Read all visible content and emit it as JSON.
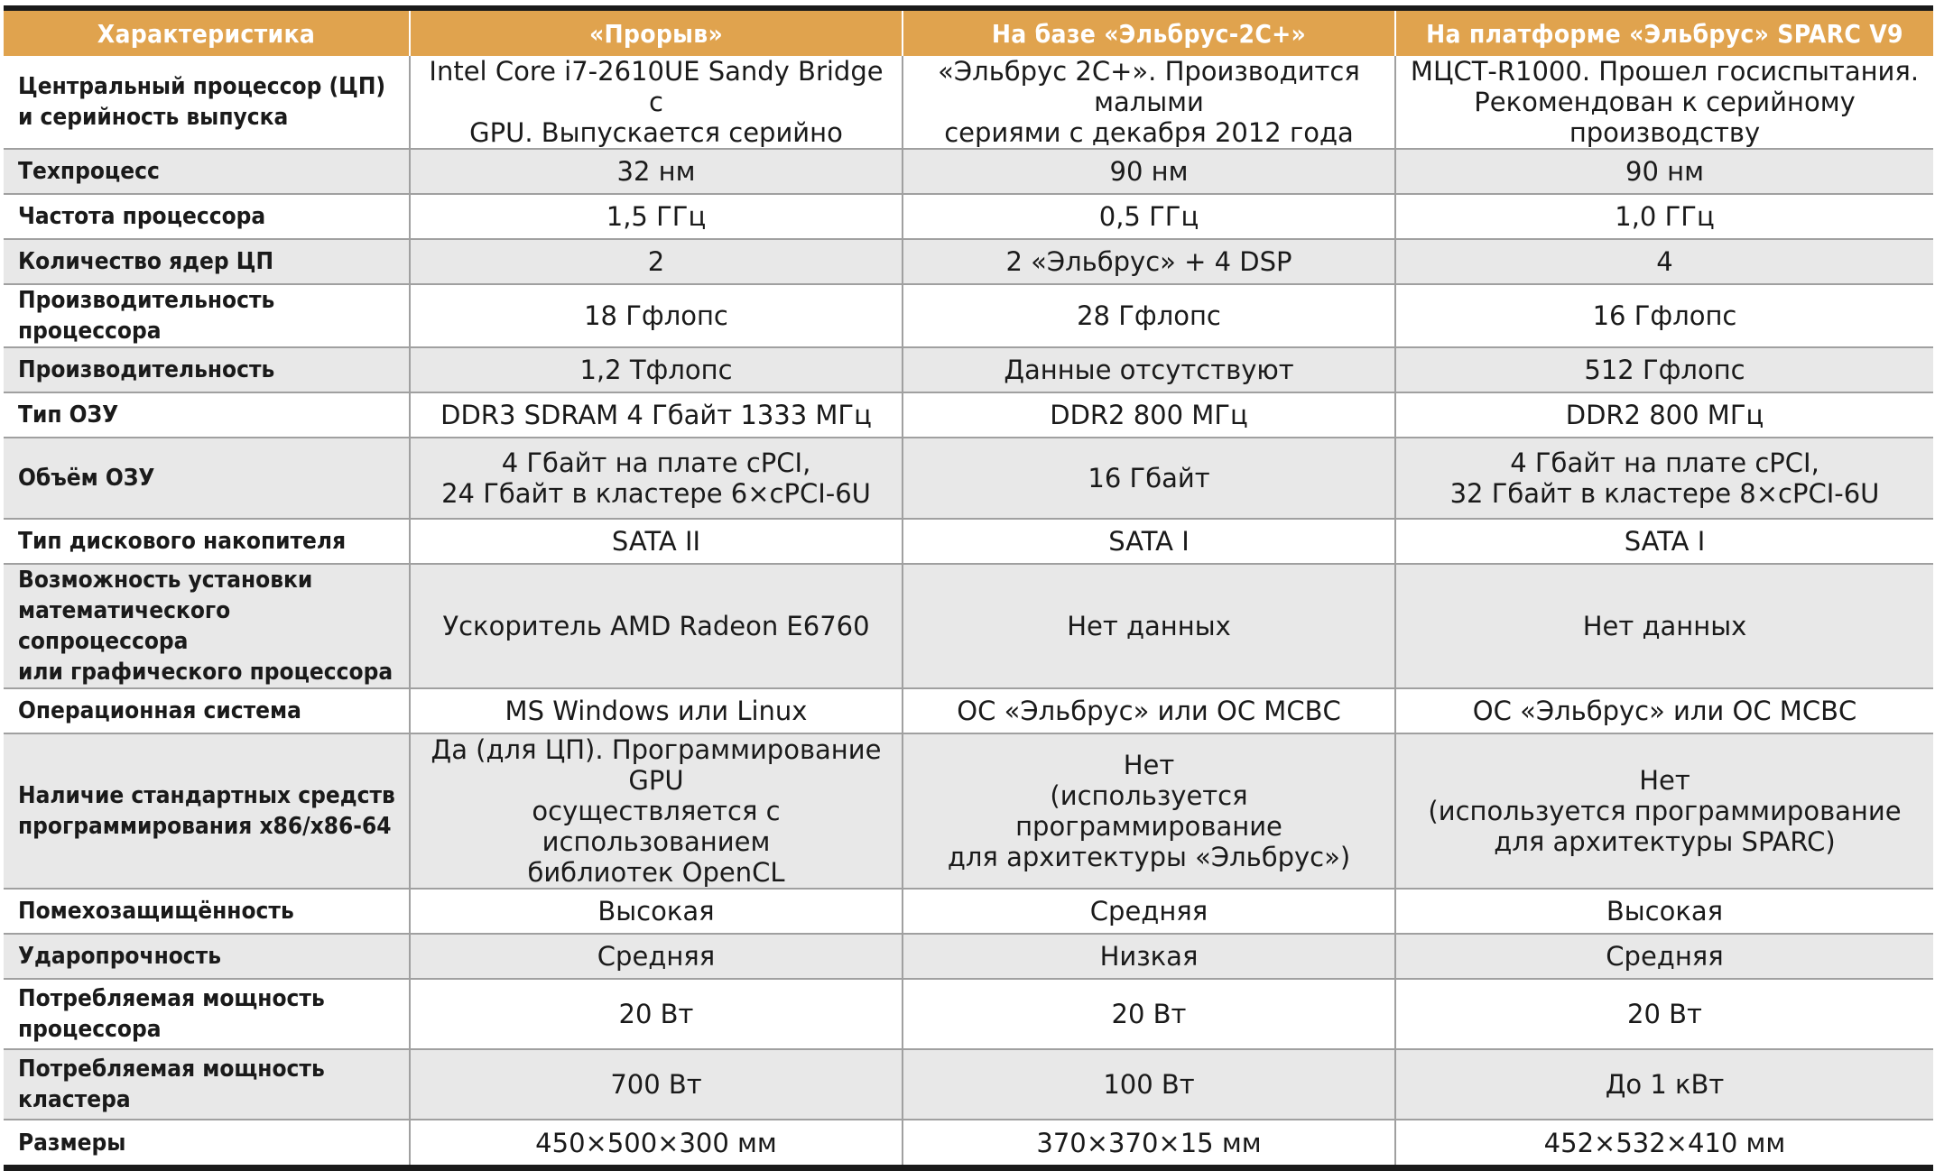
{
  "headers": [
    "Характеристика",
    "«Прорыв»",
    "На базе «Эльбрус-2С+»",
    "На платформе «Эльбрус» SPARC V9"
  ],
  "rows": [
    {
      "label": "Центральный процессор (ЦП)\nи серийность выпуска",
      "cells": [
        "Intel Core i7-2610UE Sandy Bridge с\nGPU. Выпускается серийно",
        "«Эльбрус 2С+». Производится малыми\nсериями с декабря 2012 года",
        "МЦСТ-R1000. Прошел госиспытания.\nРекомендован к серийному\nпроизводству"
      ]
    },
    {
      "label": "Техпроцесс",
      "cells": [
        "32 нм",
        "90 нм",
        "90 нм"
      ]
    },
    {
      "label": "Частота процессора",
      "cells": [
        "1,5 ГГц",
        "0,5 ГГц",
        "1,0 ГГц"
      ]
    },
    {
      "label": "Количество ядер ЦП",
      "cells": [
        "2",
        "2 «Эльбрус» + 4 DSP",
        "4"
      ]
    },
    {
      "label": "Производительность процессора",
      "cells": [
        "18 Гфлопс",
        "28 Гфлопс",
        "16 Гфлопс"
      ]
    },
    {
      "label": "Производительность",
      "cells": [
        "1,2 Тфлопс",
        "Данные отсутствуют",
        "512 Гфлопс"
      ]
    },
    {
      "label": "Тип ОЗУ",
      "cells": [
        "DDR3 SDRAM 4 Гбайт 1333 МГц",
        "DDR2 800 МГц",
        "DDR2 800 МГц"
      ]
    },
    {
      "label": "Объём ОЗУ",
      "cells": [
        "4 Гбайт на плате cPCI,\n24 Гбайт в кластере 6×cPCI-6U",
        "16 Гбайт",
        "4 Гбайт на плате cPCI,\n32 Гбайт в кластере 8×cPCI-6U"
      ]
    },
    {
      "label": "Тип дискового накопителя",
      "cells": [
        "SATA II",
        "SATA I",
        "SATA I"
      ]
    },
    {
      "label": "Возможность установки\nматематического сопроцессора\nили графического процессора",
      "cells": [
        "Ускоритель AMD Radeon E6760",
        "Нет данных",
        "Нет данных"
      ]
    },
    {
      "label": "Операционная система",
      "cells": [
        "MS Windows или Linux",
        "ОС «Эльбрус» или ОС МСВС",
        "ОС «Эльбрус» или ОС МСВС"
      ]
    },
    {
      "label": "Наличие стандартных средств\nпрограммирования x86/x86-64",
      "cells": [
        "Да (для ЦП). Программирование GPU\nосуществляется с использованием\nбиблиотек OpenCL",
        "Нет\n(используется программирование\nдля архитектуры «Эльбрус»)",
        "Нет\n(используется программирование\nдля архитектуры SPARC)"
      ]
    },
    {
      "label": "Помехозащищённость",
      "cells": [
        "Высокая",
        "Средняя",
        "Высокая"
      ]
    },
    {
      "label": "Ударопрочность",
      "cells": [
        "Средняя",
        "Низкая",
        "Средняя"
      ]
    },
    {
      "label": "Потребляемая мощность\nпроцессора",
      "cells": [
        "20 Вт",
        "20 Вт",
        "20 Вт"
      ]
    },
    {
      "label": "Потребляемая мощность\nкластера",
      "cells": [
        "700 Вт",
        "100 Вт",
        "До 1 кВт"
      ]
    },
    {
      "label": "Размеры",
      "cells": [
        "450×500×300 мм",
        "370×370×15 мм",
        "452×532×410 мм"
      ]
    }
  ]
}
